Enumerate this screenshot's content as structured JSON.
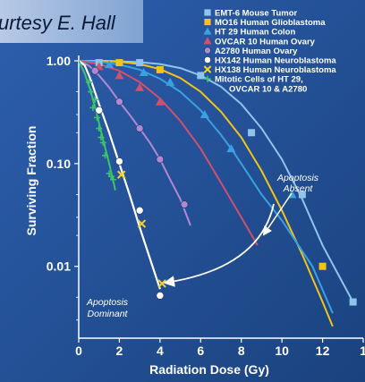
{
  "credit": "urtesy E. Hall",
  "chart_data": {
    "type": "line",
    "xlabel": "Radiation Dose (Gy)",
    "ylabel": "Surviving Fraction",
    "xlim": [
      0,
      14
    ],
    "ylim": [
      0.002,
      1
    ],
    "yscale": "log",
    "x_ticks": [
      "0",
      "2",
      "4",
      "6",
      "8",
      "10",
      "12",
      "1"
    ],
    "y_ticks": [
      "1.00",
      "0.10",
      "0.01"
    ],
    "grid": false,
    "legend_position": "top-right",
    "series": [
      {
        "name": "EMT-6 Mouse Tumor",
        "color": "#8fc4ec",
        "marker": "square",
        "x": [
          0,
          0.5,
          1,
          1.5,
          2,
          3,
          4,
          5,
          6,
          7,
          8,
          9,
          10,
          11,
          12,
          13.5
        ],
        "y": [
          1,
          1,
          1,
          1,
          0.99,
          0.97,
          0.93,
          0.85,
          0.72,
          0.56,
          0.38,
          0.22,
          0.11,
          0.045,
          0.016,
          0.0045
        ],
        "points_x": [
          1,
          3,
          6,
          8.5,
          11,
          13.5
        ],
        "points_y": [
          0.96,
          0.96,
          0.72,
          0.2,
          0.05,
          0.0045
        ]
      },
      {
        "name": "MO16 Human Glioblastoma",
        "color": "#f2c318",
        "marker": "square",
        "x": [
          0,
          1,
          2,
          3,
          4,
          5,
          6,
          7,
          8,
          9,
          10,
          11,
          12,
          12.5
        ],
        "y": [
          1,
          1,
          0.98,
          0.93,
          0.83,
          0.68,
          0.5,
          0.32,
          0.18,
          0.085,
          0.035,
          0.013,
          0.0045,
          0.0026
        ],
        "points_x": [
          2,
          4,
          12
        ],
        "points_y": [
          0.96,
          0.82,
          0.01
        ]
      },
      {
        "name": "HT 29 Human Colon",
        "color": "#3aa0e0",
        "marker": "triangle",
        "x": [
          0,
          1,
          2,
          3,
          4,
          5,
          6,
          7,
          7.5,
          8,
          9,
          10,
          11.5,
          12.5
        ],
        "y": [
          1,
          0.98,
          0.92,
          0.82,
          0.67,
          0.5,
          0.33,
          0.19,
          0.14,
          0.1,
          0.05,
          0.028,
          0.01,
          0.0035
        ],
        "points_x": [
          1.5,
          3.2,
          4.5,
          6.2,
          7.5,
          10.5
        ],
        "points_y": [
          0.92,
          0.77,
          0.62,
          0.3,
          0.14,
          0.05
        ]
      },
      {
        "name": "OVCAR 10 Human Ovary",
        "color": "#d0506e",
        "marker": "triangle",
        "x": [
          0,
          1,
          2,
          3,
          4,
          5,
          6,
          7,
          8,
          8.8
        ],
        "y": [
          1,
          0.93,
          0.8,
          0.62,
          0.43,
          0.26,
          0.14,
          0.065,
          0.03,
          0.016
        ],
        "points_x": [
          1,
          2,
          3,
          4
        ],
        "points_y": [
          0.88,
          0.72,
          0.55,
          0.4
        ]
      },
      {
        "name": "A2780 Human Ovary",
        "color": "#b089d1",
        "marker": "circle",
        "x": [
          0,
          0.5,
          1,
          1.5,
          2,
          2.5,
          3,
          3.5,
          4,
          4.5,
          5,
          5.5
        ],
        "y": [
          1,
          0.9,
          0.72,
          0.55,
          0.4,
          0.3,
          0.22,
          0.16,
          0.11,
          0.07,
          0.045,
          0.025
        ],
        "points_x": [
          0.8,
          2,
          3,
          4,
          5.2
        ],
        "points_y": [
          0.8,
          0.4,
          0.22,
          0.11,
          0.04
        ]
      },
      {
        "name": "HX142 Human Neuroblastoma",
        "color": "#ffffff",
        "marker": "circle",
        "x": [
          0,
          0.3,
          0.6,
          1,
          1.5,
          2,
          2.5,
          3,
          3.5,
          4
        ],
        "y": [
          1,
          0.9,
          0.65,
          0.38,
          0.2,
          0.1,
          0.05,
          0.024,
          0.012,
          0.006
        ],
        "points_x": [
          1,
          2,
          3,
          4
        ],
        "points_y": [
          0.33,
          0.105,
          0.035,
          0.0052
        ]
      },
      {
        "name": "HX138 Human Neuroblastoma",
        "color": "#f2d32b",
        "marker": "x",
        "x": [],
        "y": [],
        "points_x": [
          2.1,
          3.1,
          4.1
        ],
        "points_y": [
          0.078,
          0.026,
          0.0068
        ]
      },
      {
        "name": "Mitotic Cells of HT 29, OVCAR 10 & A2780",
        "color": "#3cc46a",
        "marker": "plus",
        "x": [
          0,
          0.3,
          0.6,
          0.9,
          1.2,
          1.5,
          1.8
        ],
        "y": [
          1,
          0.75,
          0.5,
          0.3,
          0.17,
          0.1,
          0.055
        ],
        "points_x": [
          0.5,
          0.6,
          0.7,
          0.8,
          0.9,
          1.0,
          1.1,
          1.2,
          1.3,
          1.5,
          1.6,
          1.7
        ],
        "points_y": [
          0.62,
          0.5,
          0.35,
          0.42,
          0.28,
          0.22,
          0.18,
          0.16,
          0.12,
          0.08,
          0.075,
          0.07
        ]
      }
    ],
    "annotations": [
      {
        "text": "Apoptosis",
        "line2": "Absent"
      },
      {
        "text": "Apoptosis",
        "line2": "Dominant"
      }
    ]
  }
}
